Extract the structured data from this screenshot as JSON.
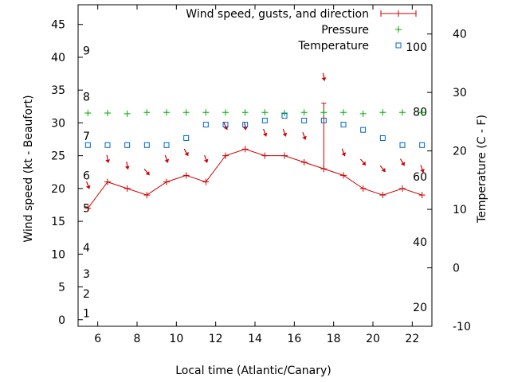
{
  "chart_data": {
    "type": "line",
    "xlabel": "Local time (Atlantic/Canary)",
    "ylabel": "Wind speed (kt - Beaufort)",
    "y2label": "Temperature (C - F)",
    "xlim": [
      5,
      23
    ],
    "ylim": [
      -1,
      48
    ],
    "y2lim": [
      -10,
      45
    ],
    "grid": false,
    "legend_position": "top-right",
    "x_ticks": [
      6,
      8,
      10,
      12,
      14,
      16,
      18,
      20,
      22
    ],
    "y_ticks": [
      0,
      5,
      10,
      15,
      20,
      25,
      30,
      35,
      40,
      45
    ],
    "y2_ticks": [
      -10,
      0,
      10,
      20,
      30,
      40
    ],
    "beaufort_labels": [
      {
        "label": "1",
        "kt": 1
      },
      {
        "label": "2",
        "kt": 4
      },
      {
        "label": "3",
        "kt": 7
      },
      {
        "label": "4",
        "kt": 11
      },
      {
        "label": "5",
        "kt": 17
      },
      {
        "label": "6",
        "kt": 22
      },
      {
        "label": "7",
        "kt": 28
      },
      {
        "label": "8",
        "kt": 34
      },
      {
        "label": "9",
        "kt": 41
      }
    ],
    "fahrenheit_labels": [
      {
        "label": "20",
        "c": -6.7
      },
      {
        "label": "40",
        "c": 4.4
      },
      {
        "label": "60",
        "c": 15.6
      },
      {
        "label": "80",
        "c": 26.7
      },
      {
        "label": "100",
        "c": 37.8
      }
    ],
    "series": [
      {
        "name": "Wind speed, gusts, and direction",
        "color": "#cc0000",
        "x": [
          5.5,
          6.5,
          7.5,
          8.5,
          9.5,
          10.5,
          11.5,
          12.5,
          13.5,
          14.5,
          15.5,
          16.5,
          17.5,
          18.5,
          19.5,
          20.5,
          21.5,
          22.5
        ],
        "y": [
          17,
          21,
          20,
          19,
          21,
          22,
          21,
          25,
          26,
          25,
          25,
          24,
          23,
          22,
          20,
          19,
          20,
          19
        ],
        "gusts": [
          null,
          null,
          null,
          null,
          null,
          null,
          null,
          null,
          null,
          null,
          null,
          null,
          33,
          null,
          null,
          null,
          null,
          null
        ],
        "arrow_y": [
          20.5,
          24.5,
          23.5,
          22.5,
          24.5,
          25.5,
          24.5,
          29.5,
          29.5,
          28.5,
          28.5,
          28,
          37,
          25.5,
          24,
          23,
          24,
          23
        ],
        "arrow_dir_deg": [
          20,
          10,
          10,
          40,
          20,
          30,
          20,
          25,
          10,
          20,
          20,
          20,
          10,
          20,
          40,
          40,
          30,
          20
        ]
      },
      {
        "name": "Pressure",
        "color": "#00aa00",
        "x": [
          5.5,
          6.5,
          7.5,
          8.5,
          9.5,
          10.5,
          11.5,
          12.5,
          13.5,
          14.5,
          15.5,
          16.5,
          17.5,
          18.5,
          19.5,
          20.5,
          21.5,
          22.5
        ],
        "y": [
          31.5,
          31.5,
          31.4,
          31.6,
          31.6,
          31.6,
          31.6,
          31.6,
          31.6,
          31.6,
          31.5,
          31.6,
          31.6,
          31.6,
          31.4,
          31.6,
          31.6,
          31.6
        ]
      },
      {
        "name": "Temperature",
        "color": "#0066cc",
        "x": [
          5.5,
          6.5,
          7.5,
          8.5,
          9.5,
          10.5,
          11.5,
          12.5,
          13.5,
          14.5,
          15.5,
          16.5,
          17.5,
          18.5,
          19.5,
          20.5,
          21.5,
          22.5
        ],
        "y2": [
          21,
          21,
          21,
          21,
          21,
          22.2,
          24.5,
          24.5,
          24.5,
          25.2,
          26,
          25.2,
          25.2,
          24.5,
          23.6,
          22.2,
          21,
          21
        ]
      }
    ]
  }
}
